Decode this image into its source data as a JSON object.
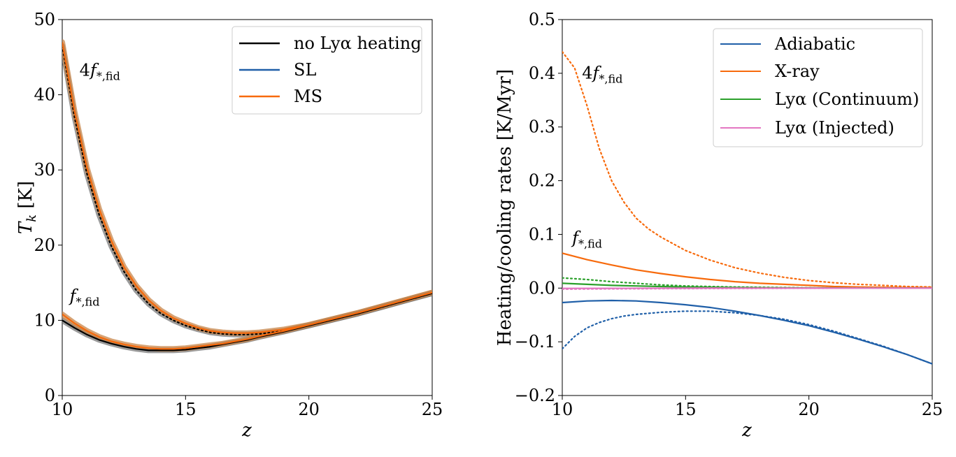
{
  "colors": {
    "black": "#000000",
    "blue": "#1f5fa8",
    "orange": "#f76a0c",
    "green": "#2ca02c",
    "pink": "#e377c2",
    "band_gray": "#7a7a7a",
    "band_orange": "#c8864a"
  },
  "chart_data": [
    {
      "type": "line",
      "xlabel": "z",
      "ylabel": "T_k [K]",
      "ylabel_main": "T",
      "ylabel_sub": "k",
      "ylabel_unit": " [K]",
      "xlim": [
        10,
        25
      ],
      "ylim": [
        0,
        50
      ],
      "xticks": [
        10,
        15,
        20,
        25
      ],
      "yticks": [
        0,
        10,
        20,
        30,
        40,
        50
      ],
      "legend": {
        "position": "top-right",
        "entries": [
          {
            "label": "no Lyα heating",
            "color": "#000000"
          },
          {
            "label": "SL",
            "color": "#1f5fa8"
          },
          {
            "label": "MS",
            "color": "#f76a0c"
          }
        ]
      },
      "annotations": [
        {
          "text_main": "4f",
          "text_sub": "*,fid",
          "x": 10.7,
          "y": 42.5
        },
        {
          "text_main": "f",
          "text_sub": "*,fid",
          "x": 10.3,
          "y": 12.5
        }
      ],
      "series": [
        {
          "name": "no Lyα heating (4f*,fid)",
          "style": "dotted",
          "color": "#000000",
          "band_color": "#7a7a7a",
          "x": [
            10,
            10.5,
            11,
            11.5,
            12,
            12.5,
            13,
            13.5,
            14,
            14.5,
            15,
            15.5,
            16,
            16.5,
            17,
            17.5,
            18,
            19,
            20,
            21,
            22,
            23,
            24,
            25
          ],
          "y": [
            46.5,
            37.0,
            29.5,
            24.0,
            19.8,
            16.5,
            14.0,
            12.2,
            10.9,
            10.0,
            9.3,
            8.8,
            8.4,
            8.2,
            8.1,
            8.1,
            8.2,
            8.6,
            9.3,
            10.1,
            10.9,
            11.8,
            12.7,
            13.6
          ]
        },
        {
          "name": "MS (4f*,fid)",
          "style": "solid",
          "color": "#f76a0c",
          "band_color": "#c8864a",
          "x": [
            10,
            10.5,
            11,
            11.5,
            12,
            12.5,
            13,
            13.5,
            14,
            14.5,
            15,
            15.5,
            16,
            16.5,
            17,
            17.5,
            18,
            19,
            20,
            21,
            22,
            23,
            24,
            25
          ],
          "y": [
            47.0,
            37.8,
            30.3,
            24.8,
            20.5,
            17.1,
            14.6,
            12.7,
            11.3,
            10.3,
            9.6,
            9.0,
            8.6,
            8.4,
            8.3,
            8.3,
            8.4,
            8.8,
            9.4,
            10.2,
            11.0,
            11.9,
            12.8,
            13.7
          ]
        },
        {
          "name": "no Lyα heating (f*,fid)",
          "style": "solid",
          "color": "#000000",
          "band_color": "#7a7a7a",
          "x": [
            10,
            10.5,
            11,
            11.5,
            12,
            12.5,
            13,
            13.5,
            14,
            14.5,
            15,
            15.5,
            16,
            16.5,
            17,
            17.5,
            18,
            19,
            20,
            21,
            22,
            23,
            24,
            25
          ],
          "y": [
            10.0,
            9.0,
            8.1,
            7.4,
            6.9,
            6.5,
            6.2,
            6.0,
            6.0,
            6.0,
            6.1,
            6.3,
            6.5,
            6.8,
            7.1,
            7.4,
            7.8,
            8.5,
            9.3,
            10.1,
            10.9,
            11.8,
            12.7,
            13.6
          ]
        },
        {
          "name": "MS (f*,fid)",
          "style": "solid",
          "color": "#f76a0c",
          "band_color": "#c8864a",
          "x": [
            10,
            10.5,
            11,
            11.5,
            12,
            12.5,
            13,
            13.5,
            14,
            14.5,
            15,
            15.5,
            16,
            16.5,
            17,
            17.5,
            18,
            19,
            20,
            21,
            22,
            23,
            24,
            25
          ],
          "y": [
            10.8,
            9.6,
            8.6,
            7.8,
            7.2,
            6.8,
            6.5,
            6.3,
            6.2,
            6.2,
            6.3,
            6.5,
            6.7,
            6.9,
            7.2,
            7.5,
            7.9,
            8.6,
            9.4,
            10.2,
            11.0,
            11.9,
            12.8,
            13.7
          ]
        }
      ]
    },
    {
      "type": "line",
      "xlabel": "z",
      "ylabel": "Heating/cooling rates [K/Myr]",
      "xlim": [
        10,
        25
      ],
      "ylim": [
        -0.2,
        0.5
      ],
      "xticks": [
        10,
        15,
        20,
        25
      ],
      "yticks": [
        -0.2,
        -0.1,
        0.0,
        0.1,
        0.2,
        0.3,
        0.4,
        0.5
      ],
      "ytick_labels": [
        "−0.2",
        "−0.1",
        "0.0",
        "0.1",
        "0.2",
        "0.3",
        "0.4",
        "0.5"
      ],
      "legend": {
        "position": "top-right",
        "entries": [
          {
            "label": "Adiabatic",
            "color": "#1f5fa8"
          },
          {
            "label": "X-ray",
            "color": "#f76a0c"
          },
          {
            "label": "Lyα (Continuum)",
            "color": "#2ca02c"
          },
          {
            "label": "Lyα (Injected)",
            "color": "#e377c2"
          }
        ]
      },
      "annotations": [
        {
          "text_main": "4f",
          "text_sub": "*,fid",
          "x": 10.8,
          "y": 0.39
        },
        {
          "text_main": "f",
          "text_sub": "*,fid",
          "x": 10.4,
          "y": 0.083
        }
      ],
      "series": [
        {
          "name": "X-ray (4f*,fid)",
          "style": "dotted",
          "color": "#f76a0c",
          "x": [
            10,
            10.5,
            11,
            11.5,
            12,
            12.5,
            13,
            13.5,
            14,
            15,
            16,
            17,
            18,
            19,
            20,
            21,
            22,
            23,
            24,
            25
          ],
          "y": [
            0.44,
            0.41,
            0.34,
            0.26,
            0.2,
            0.16,
            0.13,
            0.11,
            0.095,
            0.07,
            0.052,
            0.038,
            0.028,
            0.02,
            0.014,
            0.01,
            0.007,
            0.005,
            0.003,
            0.002
          ]
        },
        {
          "name": "X-ray (f*,fid)",
          "style": "solid",
          "color": "#f76a0c",
          "x": [
            10,
            11,
            12,
            13,
            14,
            15,
            16,
            17,
            18,
            19,
            20,
            21,
            22,
            23,
            24,
            25
          ],
          "y": [
            0.065,
            0.053,
            0.043,
            0.034,
            0.027,
            0.021,
            0.016,
            0.012,
            0.009,
            0.007,
            0.005,
            0.003,
            0.002,
            0.0015,
            0.001,
            0.001
          ]
        },
        {
          "name": "Lyα (Continuum) (4f*,fid)",
          "style": "dotted",
          "color": "#2ca02c",
          "x": [
            10,
            11,
            12,
            13,
            14,
            15,
            16,
            17,
            18,
            19,
            20,
            22,
            25
          ],
          "y": [
            0.019,
            0.016,
            0.012,
            0.009,
            0.006,
            0.004,
            0.003,
            0.002,
            0.0015,
            0.001,
            0.0005,
            0.0002,
            0.0001
          ]
        },
        {
          "name": "Lyα (Continuum) (f*,fid)",
          "style": "solid",
          "color": "#2ca02c",
          "x": [
            10,
            11,
            12,
            13,
            14,
            15,
            16,
            17,
            18,
            20,
            22,
            25
          ],
          "y": [
            0.009,
            0.007,
            0.005,
            0.004,
            0.003,
            0.002,
            0.0015,
            0.001,
            0.0008,
            0.0004,
            0.0002,
            0.0001
          ]
        },
        {
          "name": "Lyα (Injected) (4f*,fid)",
          "style": "dotted",
          "color": "#e377c2",
          "x": [
            10,
            12,
            14,
            16,
            18,
            20,
            22,
            25
          ],
          "y": [
            -0.002,
            -0.0015,
            -0.001,
            -0.0008,
            -0.0005,
            -0.0003,
            -0.0002,
            -0.0001
          ]
        },
        {
          "name": "Lyα (Injected) (f*,fid)",
          "style": "solid",
          "color": "#e377c2",
          "x": [
            10,
            12,
            14,
            16,
            18,
            20,
            22,
            25
          ],
          "y": [
            -0.0005,
            -0.0004,
            -0.0003,
            -0.0002,
            -0.0001,
            -0.0001,
            0.0,
            0.0
          ]
        },
        {
          "name": "Adiabatic (4f*,fid)",
          "style": "dotted",
          "color": "#1f5fa8",
          "x": [
            10,
            10.5,
            11,
            11.5,
            12,
            12.5,
            13,
            14,
            15,
            16,
            17,
            18,
            19,
            20,
            21,
            22,
            23,
            24,
            25
          ],
          "y": [
            -0.113,
            -0.09,
            -0.074,
            -0.064,
            -0.057,
            -0.052,
            -0.049,
            -0.045,
            -0.043,
            -0.043,
            -0.046,
            -0.051,
            -0.058,
            -0.068,
            -0.08,
            -0.094,
            -0.108,
            -0.124,
            -0.141
          ]
        },
        {
          "name": "Adiabatic (f*,fid)",
          "style": "solid",
          "color": "#1f5fa8",
          "x": [
            10,
            11,
            12,
            13,
            14,
            15,
            16,
            17,
            18,
            19,
            20,
            21,
            22,
            23,
            24,
            25
          ],
          "y": [
            -0.027,
            -0.024,
            -0.023,
            -0.024,
            -0.027,
            -0.031,
            -0.036,
            -0.043,
            -0.051,
            -0.06,
            -0.07,
            -0.082,
            -0.095,
            -0.109,
            -0.124,
            -0.141
          ]
        }
      ]
    }
  ]
}
